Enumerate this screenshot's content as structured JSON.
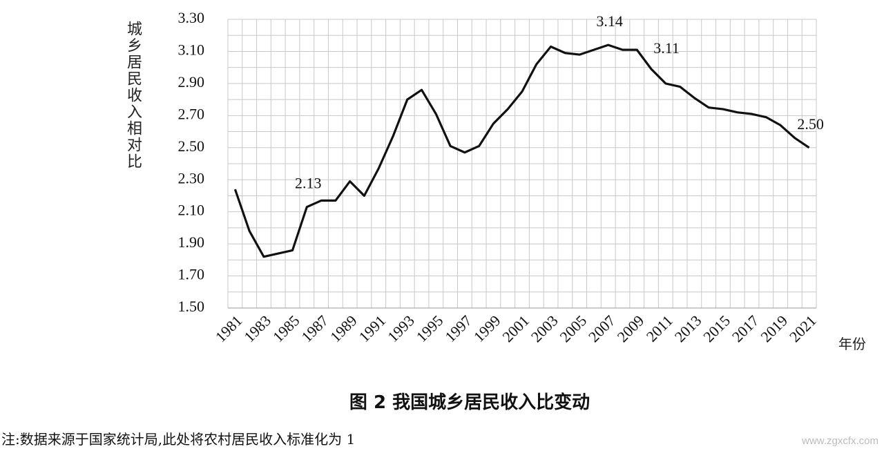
{
  "chart_data": {
    "type": "line",
    "title": "图 2  我国城乡居民收入比变动",
    "y_label": "城乡居民收入相对比",
    "x_label": "年份",
    "note": "注:数据来源于国家统计局,此处将农村居民收入标准化为 1",
    "watermark": "www.zgxcfx.com",
    "categories": [
      "1981",
      null,
      "1983",
      null,
      "1985",
      null,
      "1987",
      null,
      "1989",
      null,
      "1991",
      null,
      "1993",
      null,
      "1995",
      null,
      "1997",
      null,
      "1999",
      null,
      "2001",
      null,
      "2003",
      null,
      "2005",
      null,
      "2007",
      null,
      "2009",
      null,
      "2011",
      null,
      "2013",
      null,
      "2015",
      null,
      "2017",
      null,
      "2019",
      null,
      "2021"
    ],
    "series": [
      {
        "name": "城乡居民收入相对比",
        "color": "#111111",
        "values": [
          2.24,
          1.98,
          1.82,
          1.84,
          1.86,
          2.13,
          2.17,
          2.17,
          2.29,
          2.2,
          2.37,
          2.57,
          2.8,
          2.86,
          2.71,
          2.51,
          2.47,
          2.51,
          2.65,
          2.74,
          2.85,
          3.02,
          3.13,
          3.09,
          3.08,
          3.11,
          3.14,
          3.11,
          3.11,
          2.99,
          2.9,
          2.88,
          2.81,
          2.75,
          2.74,
          2.72,
          2.71,
          2.69,
          2.64,
          2.56,
          2.5
        ],
        "value_labels": [
          null,
          null,
          null,
          null,
          null,
          "2.13",
          null,
          null,
          null,
          null,
          null,
          null,
          null,
          null,
          null,
          null,
          null,
          null,
          null,
          null,
          null,
          null,
          null,
          null,
          null,
          null,
          "3.14",
          null,
          "3.11",
          null,
          null,
          null,
          null,
          null,
          null,
          null,
          null,
          null,
          null,
          null,
          "2.50"
        ]
      }
    ],
    "ylim": [
      1.5,
      3.3
    ],
    "yticks": [
      {
        "value": 1.5,
        "label": "1.50"
      },
      {
        "value": 1.7,
        "label": "1.70"
      },
      {
        "value": 1.9,
        "label": "1.90"
      },
      {
        "value": 2.1,
        "label": "2.10"
      },
      {
        "value": 2.3,
        "label": "2.30"
      },
      {
        "value": 2.5,
        "label": "2.50"
      },
      {
        "value": 2.7,
        "label": "2.70"
      },
      {
        "value": 2.9,
        "label": "2.90"
      },
      {
        "value": 3.1,
        "label": "3.10"
      },
      {
        "value": 3.3,
        "label": "3.30"
      }
    ],
    "minor_yticks": [
      1.6,
      1.8,
      2.0,
      2.2,
      2.4,
      2.6,
      2.8,
      3.0,
      3.2
    ],
    "grid": true
  }
}
